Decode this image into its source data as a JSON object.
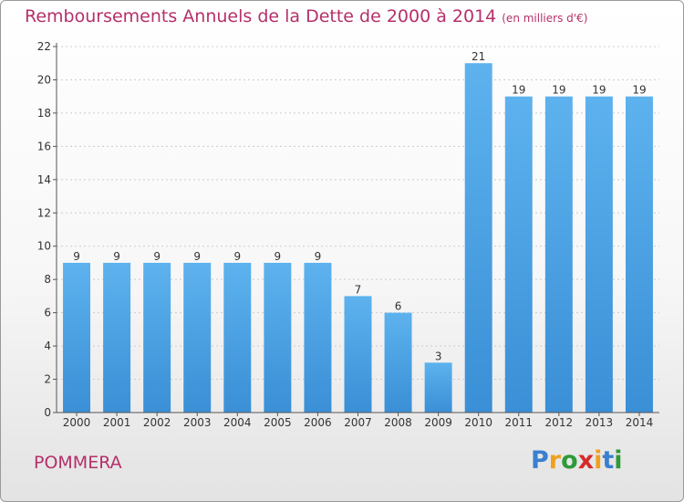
{
  "title": "Remboursements Annuels de la Dette de 2000 à 2014",
  "unit": "(en milliers d'€)",
  "commune": "POMMERA",
  "logo": {
    "letters": [
      "P",
      "r",
      "o",
      "x",
      "i",
      "t",
      "i"
    ],
    "colors": [
      "#3a7fd0",
      "#f0a020",
      "#2e9a3a",
      "#d52b2b",
      "#f0a020",
      "#3a7fd0",
      "#2e9a3a"
    ]
  },
  "colors": {
    "bar": "#3a8fd6",
    "bar_light": "#5db2ee",
    "title": "#b5306a"
  },
  "chart_data": {
    "type": "bar",
    "categories": [
      "2000",
      "2001",
      "2002",
      "2003",
      "2004",
      "2005",
      "2006",
      "2007",
      "2008",
      "2009",
      "2010",
      "2011",
      "2012",
      "2013",
      "2014"
    ],
    "values": [
      9,
      9,
      9,
      9,
      9,
      9,
      9,
      7,
      6,
      3,
      21,
      19,
      19,
      19,
      19
    ],
    "data_labels": [
      "9",
      "9",
      "9",
      "9",
      "9",
      "9",
      "9",
      "7",
      "6",
      "3",
      "21",
      "19",
      "19",
      "19",
      "19"
    ],
    "title": "Remboursements Annuels de la Dette de 2000 à 2014",
    "xlabel": "",
    "ylabel": "",
    "ylim": [
      0,
      22
    ],
    "yticks": [
      0,
      2,
      4,
      6,
      8,
      10,
      12,
      14,
      16,
      18,
      20,
      22
    ],
    "grid": true
  }
}
